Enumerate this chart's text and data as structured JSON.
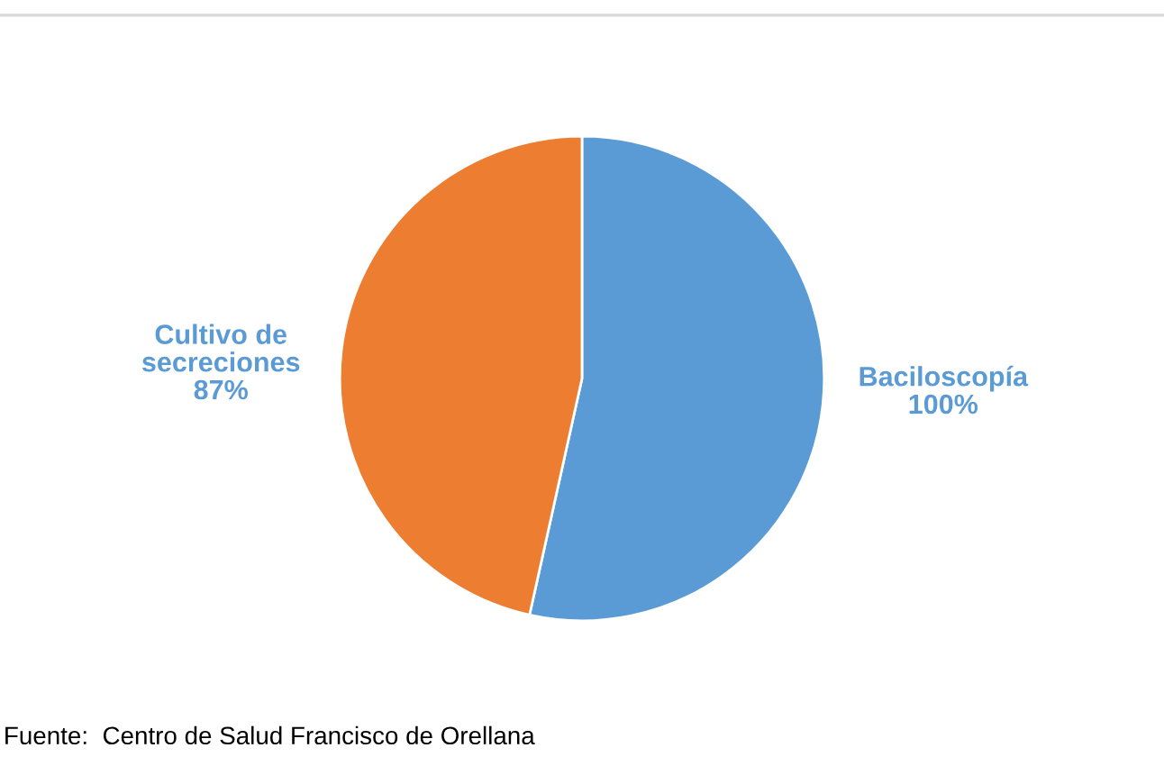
{
  "chart_data": {
    "type": "pie",
    "categories": [
      "Baciloscopía",
      "Cultivo de secreciones"
    ],
    "values": [
      100,
      87
    ],
    "value_labels": [
      "100%",
      "87%"
    ],
    "colors": [
      "#5b9bd5",
      "#ed7d31"
    ],
    "legend": false,
    "annotations": [
      "Fuente:  Centro de Salud Francisco de Orellana"
    ]
  }
}
